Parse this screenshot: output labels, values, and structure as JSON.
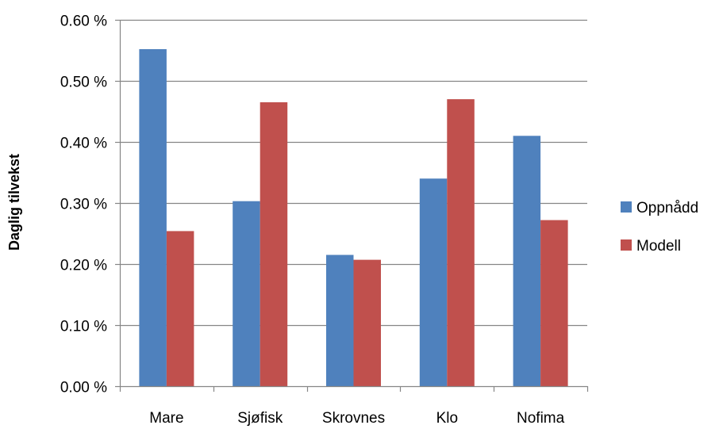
{
  "chart_data": {
    "type": "bar",
    "title": "",
    "xlabel": "",
    "ylabel": "Daglig tilvekst",
    "categories": [
      "Mare",
      "Sjøfisk",
      "Skrovnes",
      "Klo",
      "Nofima"
    ],
    "series": [
      {
        "name": "Oppnådd",
        "color": "#4F81BD",
        "values": [
          0.552,
          0.303,
          0.215,
          0.34,
          0.41
        ]
      },
      {
        "name": "Modell",
        "color": "#C0504D",
        "values": [
          0.254,
          0.465,
          0.207,
          0.47,
          0.272
        ]
      }
    ],
    "ylim": [
      0,
      0.6
    ],
    "yticks": [
      0,
      0.1,
      0.2,
      0.3,
      0.4,
      0.5,
      0.6
    ],
    "ytick_labels": [
      "0.00 %",
      "0.10 %",
      "0.20 %",
      "0.30 %",
      "0.40 %",
      "0.50 %",
      "0.60 %"
    ],
    "grid": true,
    "legend": "right"
  }
}
